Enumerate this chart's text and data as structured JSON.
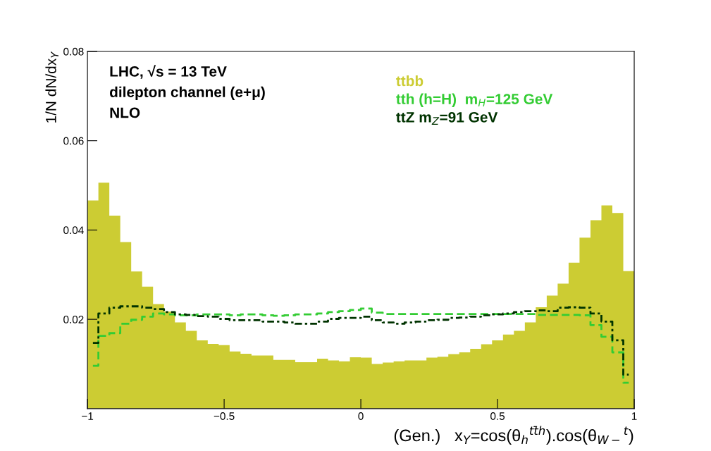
{
  "chart_data": {
    "type": "histogram",
    "bins": [
      -1.0,
      -0.96,
      -0.92,
      -0.88,
      -0.84,
      -0.8,
      -0.76,
      -0.72,
      -0.68,
      -0.64,
      -0.6,
      -0.56,
      -0.52,
      -0.48,
      -0.44,
      -0.4,
      -0.36,
      -0.32,
      -0.28,
      -0.24,
      -0.2,
      -0.16,
      -0.12,
      -0.08,
      -0.04,
      0.0,
      0.04,
      0.08,
      0.12,
      0.16,
      0.2,
      0.24,
      0.28,
      0.32,
      0.36,
      0.4,
      0.44,
      0.48,
      0.52,
      0.56,
      0.6,
      0.64,
      0.68,
      0.72,
      0.76,
      0.8,
      0.84,
      0.88,
      0.92,
      0.96,
      1.0
    ],
    "series": [
      {
        "name": "ttbb",
        "color": "#cccc33",
        "values": [
          0.0466,
          0.0506,
          0.0432,
          0.0373,
          0.0307,
          0.0273,
          0.0234,
          0.0217,
          0.0193,
          0.0174,
          0.0153,
          0.0145,
          0.0142,
          0.0128,
          0.0123,
          0.0119,
          0.0119,
          0.0109,
          0.0109,
          0.0104,
          0.0104,
          0.0112,
          0.0108,
          0.0106,
          0.0115,
          0.0114,
          0.01,
          0.0103,
          0.0106,
          0.0108,
          0.0108,
          0.0114,
          0.0116,
          0.0122,
          0.0126,
          0.0134,
          0.0144,
          0.0153,
          0.0166,
          0.0174,
          0.0193,
          0.0227,
          0.0253,
          0.028,
          0.0327,
          0.0383,
          0.0422,
          0.0455,
          0.0438,
          0.0308
        ]
      },
      {
        "name": "tth (h=H)  m$_{H}$=125 GeV",
        "type": "step",
        "line_style": "dashed",
        "color": "#33cc33",
        "x": [
          -0.98,
          -0.94,
          -0.9,
          -0.86,
          -0.82,
          -0.78,
          -0.74,
          -0.7,
          -0.66,
          -0.62,
          -0.58,
          -0.54,
          -0.5,
          -0.46,
          -0.42,
          -0.38,
          -0.34,
          -0.3,
          -0.26,
          -0.22,
          -0.18,
          -0.14,
          -0.1,
          -0.06,
          -0.02,
          0.02,
          0.06,
          0.1,
          0.14,
          0.18,
          0.22,
          0.26,
          0.3,
          0.34,
          0.38,
          0.42,
          0.46,
          0.5,
          0.54,
          0.58,
          0.62,
          0.66,
          0.7,
          0.74,
          0.78,
          0.82,
          0.86,
          0.9,
          0.94,
          0.98
        ],
        "values": [
          0.0096,
          0.0163,
          0.0169,
          0.019,
          0.0199,
          0.0206,
          0.0213,
          0.0211,
          0.0209,
          0.0209,
          0.0211,
          0.0211,
          0.0211,
          0.0209,
          0.0211,
          0.0211,
          0.0209,
          0.0208,
          0.0209,
          0.0211,
          0.0211,
          0.0213,
          0.0216,
          0.0218,
          0.0221,
          0.0224,
          0.0215,
          0.0212,
          0.0212,
          0.0212,
          0.0212,
          0.0212,
          0.0212,
          0.0212,
          0.0212,
          0.0212,
          0.0212,
          0.0212,
          0.0212,
          0.0212,
          0.0212,
          0.021,
          0.021,
          0.021,
          0.021,
          0.0209,
          0.0187,
          0.0161,
          0.0126,
          0.0058
        ]
      },
      {
        "name": "ttZ m$_{Z}$=91 GeV",
        "type": "step",
        "line_style": "dashdot",
        "color": "#003300",
        "x": [
          -0.98,
          -0.94,
          -0.9,
          -0.86,
          -0.82,
          -0.78,
          -0.74,
          -0.7,
          -0.66,
          -0.62,
          -0.58,
          -0.54,
          -0.5,
          -0.46,
          -0.42,
          -0.38,
          -0.34,
          -0.3,
          -0.26,
          -0.22,
          -0.18,
          -0.14,
          -0.1,
          -0.06,
          -0.02,
          0.02,
          0.06,
          0.1,
          0.14,
          0.18,
          0.22,
          0.26,
          0.3,
          0.34,
          0.38,
          0.42,
          0.46,
          0.5,
          0.54,
          0.58,
          0.62,
          0.66,
          0.7,
          0.74,
          0.78,
          0.82,
          0.86,
          0.9,
          0.94,
          0.98
        ],
        "values": [
          0.0147,
          0.0213,
          0.0226,
          0.0229,
          0.0229,
          0.0226,
          0.0223,
          0.0216,
          0.0211,
          0.021,
          0.0207,
          0.0206,
          0.0201,
          0.0198,
          0.0198,
          0.0198,
          0.0195,
          0.0195,
          0.0193,
          0.019,
          0.019,
          0.0195,
          0.0201,
          0.0203,
          0.0203,
          0.0206,
          0.0198,
          0.0193,
          0.019,
          0.0193,
          0.0195,
          0.0198,
          0.0199,
          0.0203,
          0.0204,
          0.0206,
          0.0209,
          0.0211,
          0.0213,
          0.0216,
          0.0218,
          0.022,
          0.0218,
          0.0226,
          0.0227,
          0.0226,
          0.0213,
          0.0195,
          0.0153,
          0.0076
        ]
      }
    ],
    "xlim": [
      -1,
      1
    ],
    "xticks": [
      {
        "value": -1,
        "label": "−1"
      },
      {
        "value": -0.5,
        "label": "−0.5"
      },
      0,
      0.5,
      1
    ],
    "ylim": [
      0,
      0.08
    ],
    "yticks": [
      0.02,
      0.04,
      0.06,
      0.08
    ],
    "xlabel": "(Gen.)   x$_{Y}$=cos(θ$_{h}$$^{tt̄h}$).cos(θ$_{W−}$$^{t}$)",
    "ylabel": "1/N dN/dx$_{Y}$",
    "annotations": [
      "LHC, √s = 13 TeV",
      "dilepton channel (e+μ)",
      "NLO"
    ],
    "legend": "top right",
    "grid": false
  }
}
